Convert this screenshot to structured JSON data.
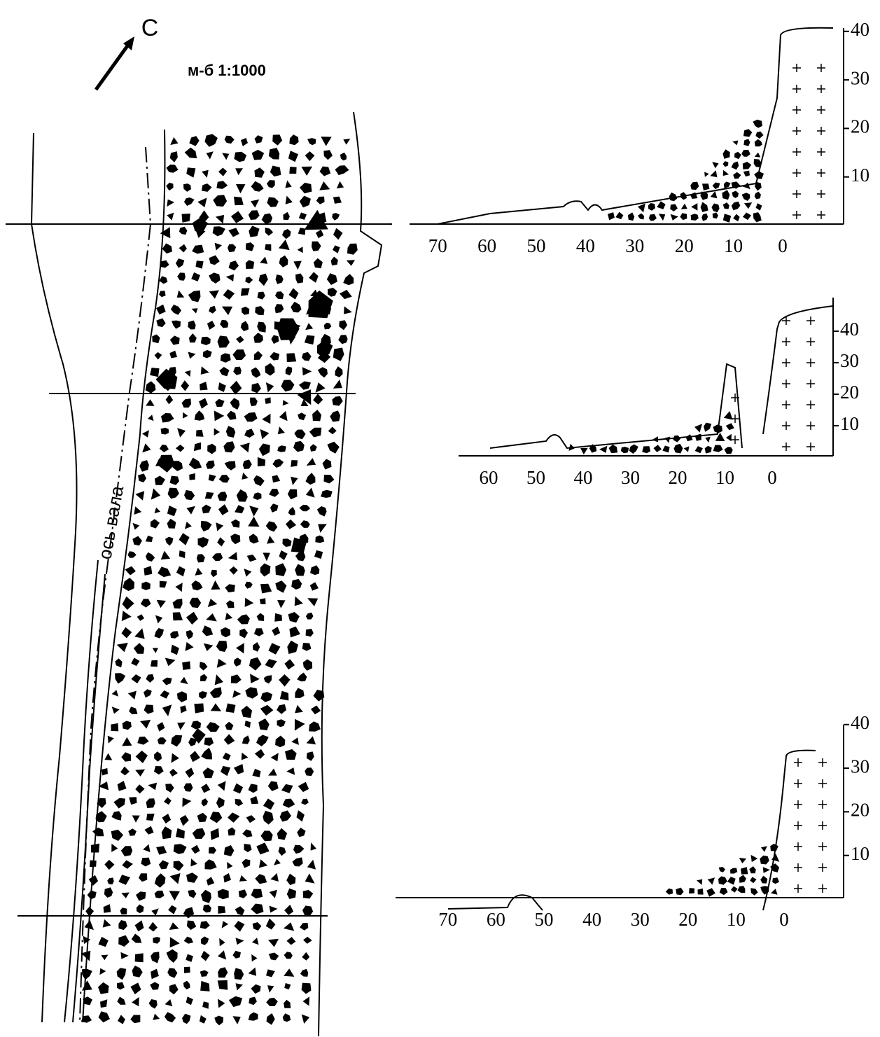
{
  "plan": {
    "north_label": "С",
    "scale_label": "м-б 1:1000",
    "axis_label": "ось вала"
  },
  "profiles": [
    {
      "x_ticks": [
        70,
        60,
        50,
        40,
        30,
        20,
        10,
        0
      ],
      "y_ticks": [
        40,
        30,
        20,
        10
      ]
    },
    {
      "x_ticks": [
        60,
        50,
        40,
        30,
        20,
        10,
        0
      ],
      "y_ticks": [
        40,
        30,
        20,
        10
      ]
    },
    {
      "x_ticks": [
        70,
        60,
        50,
        40,
        30,
        20,
        10,
        0
      ],
      "y_ticks": [
        40,
        30,
        20,
        10
      ]
    }
  ]
}
